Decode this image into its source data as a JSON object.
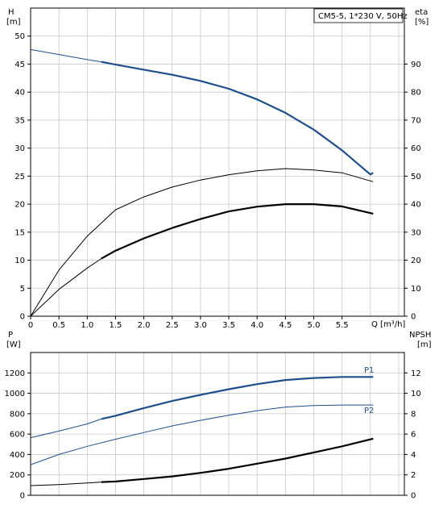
{
  "chart_data": [
    {
      "type": "line",
      "title": "CM5-5, 1*230 V, 50Hz",
      "left_axis": {
        "label_line1": "H",
        "label_line2": "[m]",
        "ylim": [
          0,
          55
        ],
        "ticks": [
          "0",
          "5",
          "10",
          "15",
          "20",
          "25",
          "30",
          "35",
          "40",
          "45",
          "50"
        ]
      },
      "right_axis": {
        "label_line1": "eta",
        "label_line2": "[%]",
        "ylim": [
          0,
          110
        ],
        "ticks": [
          "0",
          "10",
          "20",
          "30",
          "40",
          "50",
          "60",
          "70",
          "80",
          "90"
        ]
      },
      "x_axis": {
        "label": "Q [m³/h]",
        "xlim": [
          0,
          6.6
        ],
        "ticks": [
          "0",
          "0.5",
          "1.0",
          "1.5",
          "2.0",
          "2.5",
          "3.0",
          "3.5",
          "4.0",
          "4.5",
          "5.0",
          "5.5"
        ]
      },
      "grid": true,
      "series": [
        {
          "key": "H",
          "axis": "left",
          "color": "#1f4e8c",
          "x": [
            0,
            0.5,
            1.0,
            1.25,
            1.5,
            2.0,
            2.5,
            3.0,
            3.5,
            4.0,
            4.5,
            5.0,
            5.5,
            6.0,
            6.05
          ],
          "y": [
            47.6,
            46.7,
            45.8,
            45.4,
            44.9,
            44.0,
            43.1,
            42.0,
            40.6,
            38.7,
            36.3,
            33.3,
            29.6,
            25.3,
            25.6
          ]
        },
        {
          "key": "eta_thin",
          "axis": "right",
          "color": "#000000",
          "x": [
            0,
            0.5,
            1.0,
            1.5,
            2.0,
            2.5,
            3.0,
            3.5,
            4.0,
            4.5,
            5.0,
            5.5,
            6.05
          ],
          "y": [
            0,
            16.5,
            28.6,
            38.0,
            42.6,
            46.1,
            48.6,
            50.5,
            51.9,
            52.7,
            52.2,
            51.2,
            48.0
          ]
        },
        {
          "key": "eta_thick",
          "axis": "right",
          "color": "#000000",
          "x": [
            0,
            0.5,
            1.0,
            1.25,
            1.5,
            2.0,
            2.5,
            3.0,
            3.5,
            4.0,
            4.5,
            5.0,
            5.5,
            6.05
          ],
          "y": [
            0,
            9.6,
            17.2,
            20.6,
            23.4,
            27.8,
            31.5,
            34.7,
            37.4,
            39.1,
            40.0,
            40.0,
            39.2,
            36.6
          ]
        }
      ]
    },
    {
      "type": "line",
      "left_axis": {
        "label_line1": "P",
        "label_line2": "[W]",
        "ylim": [
          0,
          1400
        ],
        "ticks": [
          "0",
          "200",
          "400",
          "600",
          "800",
          "1000",
          "1200"
        ]
      },
      "right_axis": {
        "label_line1": "NPSH",
        "label_line2": "[m]",
        "ylim": [
          0,
          14
        ],
        "ticks": [
          "0",
          "2",
          "4",
          "6",
          "8",
          "10",
          "12"
        ]
      },
      "x_axis": {
        "xlim": [
          0,
          6.6
        ]
      },
      "grid": true,
      "series": [
        {
          "key": "P1",
          "name": "P1",
          "axis": "left",
          "color": "#1f4e8c",
          "x": [
            0,
            0.5,
            1.0,
            1.25,
            1.5,
            2.0,
            2.5,
            3.0,
            3.5,
            4.0,
            4.5,
            5.0,
            5.5,
            6.05
          ],
          "y": [
            565,
            630,
            700,
            748,
            780,
            855,
            925,
            985,
            1040,
            1090,
            1130,
            1150,
            1160,
            1160
          ]
        },
        {
          "key": "P2",
          "name": "P2",
          "axis": "left",
          "color": "#1f4e8c",
          "x": [
            0,
            0.5,
            1.0,
            1.5,
            2.0,
            2.5,
            3.0,
            3.5,
            4.0,
            4.5,
            5.0,
            5.5,
            6.05
          ],
          "y": [
            300,
            400,
            480,
            550,
            615,
            680,
            735,
            785,
            830,
            865,
            880,
            885,
            885
          ]
        },
        {
          "key": "NPSH",
          "axis": "right",
          "color": "#000000",
          "x": [
            0,
            0.5,
            1.0,
            1.25,
            1.5,
            2.0,
            2.5,
            3.0,
            3.5,
            4.0,
            4.5,
            5.0,
            5.5,
            6.05
          ],
          "y": [
            0.95,
            1.05,
            1.2,
            1.3,
            1.35,
            1.6,
            1.85,
            2.2,
            2.6,
            3.1,
            3.6,
            4.2,
            4.8,
            5.55
          ]
        }
      ]
    }
  ]
}
